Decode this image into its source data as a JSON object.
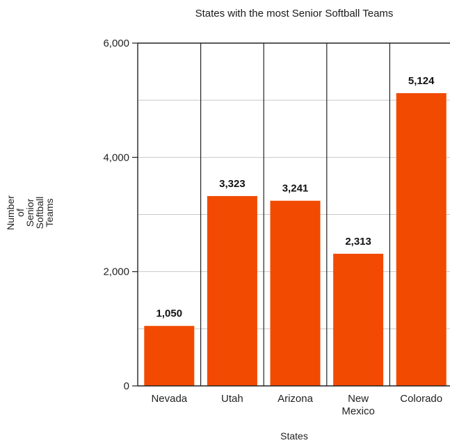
{
  "chart_data": {
    "type": "bar",
    "title": "States with the most Senior Softball Teams",
    "xlabel": "States",
    "ylabel_lines": [
      "Number",
      "of",
      "Senior",
      "Softball",
      "Teams"
    ],
    "categories": [
      [
        "Nevada"
      ],
      [
        "Utah"
      ],
      [
        "Arizona"
      ],
      [
        "New",
        "Mexico"
      ],
      [
        "Colorado"
      ]
    ],
    "values": [
      1050,
      3323,
      3241,
      2313,
      5124
    ],
    "value_labels": [
      "1,050",
      "3,323",
      "3,241",
      "2,313",
      "5,124"
    ],
    "ylim": [
      0,
      6000
    ],
    "yticks": [
      0,
      2000,
      4000,
      6000
    ],
    "ytick_labels": [
      "0",
      "2,000",
      "4,000",
      "6,000"
    ],
    "grid": true,
    "colors": {
      "bar": "#f24a00",
      "grid_minor": "#c8c8c8",
      "grid_major": "#222222",
      "frame": "#222222"
    }
  }
}
